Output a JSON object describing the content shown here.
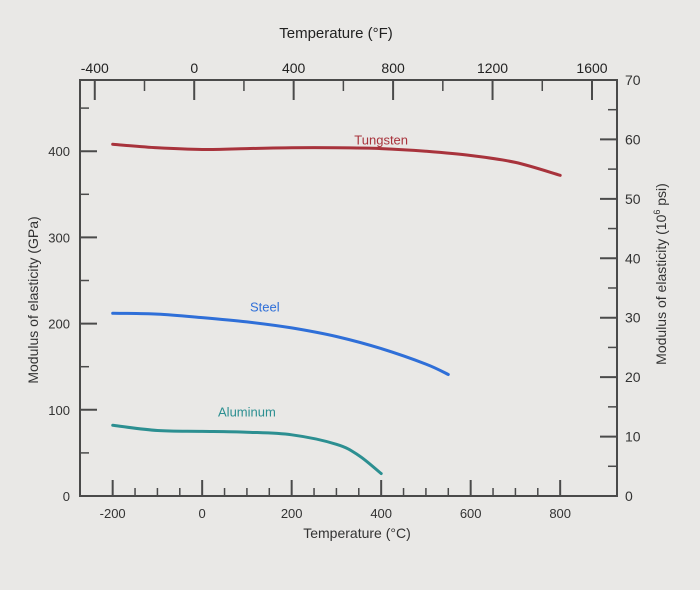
{
  "chart_data": {
    "type": "line",
    "top_axis_label": "Temperature (°F)",
    "bottom_axis_label": "Temperature (°C)",
    "left_axis_label": "Modulus of elasticity (GPa)",
    "right_axis_label_main": "Modulus of elasticity (10",
    "right_axis_label_sup": "6",
    "right_axis_label_end": " psi)",
    "x_range_c": [
      -273,
      927
    ],
    "y_range_gpa": [
      0,
      482.6
    ],
    "bottom_ticks": [
      {
        "value": -200,
        "label": "-200"
      },
      {
        "value": 0,
        "label": "0"
      },
      {
        "value": 200,
        "label": "200"
      },
      {
        "value": 400,
        "label": "400"
      },
      {
        "value": 600,
        "label": "600"
      },
      {
        "value": 800,
        "label": "800"
      }
    ],
    "top_ticks": [
      {
        "value": -400,
        "label": "-400"
      },
      {
        "value": 0,
        "label": "0"
      },
      {
        "value": 400,
        "label": "400"
      },
      {
        "value": 800,
        "label": "800"
      },
      {
        "value": 1200,
        "label": "1200"
      },
      {
        "value": 1600,
        "label": "1600"
      }
    ],
    "left_ticks": [
      {
        "value": 0,
        "label": "0"
      },
      {
        "value": 100,
        "label": "100"
      },
      {
        "value": 200,
        "label": "200"
      },
      {
        "value": 300,
        "label": "300"
      },
      {
        "value": 400,
        "label": "400"
      }
    ],
    "right_ticks": [
      {
        "value": 0,
        "label": "0"
      },
      {
        "value": 10,
        "label": "10"
      },
      {
        "value": 20,
        "label": "20"
      },
      {
        "value": 30,
        "label": "30"
      },
      {
        "value": 40,
        "label": "40"
      },
      {
        "value": 50,
        "label": "50"
      },
      {
        "value": 60,
        "label": "60"
      },
      {
        "value": 70,
        "label": "70"
      }
    ],
    "series": [
      {
        "name": "Tungsten",
        "color": "#a8333c",
        "points": [
          [
            -200,
            408
          ],
          [
            -100,
            404
          ],
          [
            0,
            402
          ],
          [
            100,
            403
          ],
          [
            200,
            404
          ],
          [
            300,
            404
          ],
          [
            400,
            403
          ],
          [
            500,
            400
          ],
          [
            600,
            395
          ],
          [
            700,
            387
          ],
          [
            800,
            372
          ]
        ]
      },
      {
        "name": "Steel",
        "color": "#2f6fd8",
        "points": [
          [
            -200,
            212
          ],
          [
            -100,
            211
          ],
          [
            0,
            207
          ],
          [
            100,
            202
          ],
          [
            200,
            195
          ],
          [
            300,
            185
          ],
          [
            400,
            171
          ],
          [
            500,
            153
          ],
          [
            550,
            141
          ]
        ]
      },
      {
        "name": "Aluminum",
        "color": "#2c8f91",
        "points": [
          [
            -200,
            82
          ],
          [
            -100,
            76
          ],
          [
            0,
            75
          ],
          [
            100,
            74
          ],
          [
            200,
            71
          ],
          [
            300,
            60
          ],
          [
            350,
            47
          ],
          [
            400,
            26
          ]
        ]
      }
    ]
  }
}
